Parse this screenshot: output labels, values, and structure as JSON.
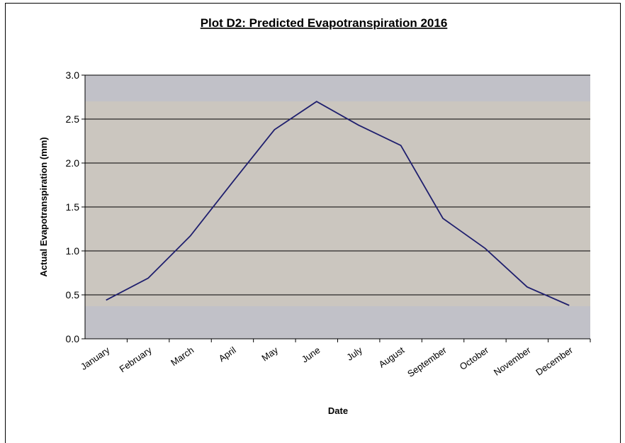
{
  "chart_data": {
    "type": "line",
    "title": "Plot D2: Predicted Evapotranspiration 2016",
    "x_label": "Date",
    "y_label": "Actual Evapotranspiration (mm)",
    "categories": [
      "January",
      "February",
      "March",
      "April",
      "May",
      "June",
      "July",
      "August",
      "September",
      "October",
      "November",
      "December"
    ],
    "values": [
      0.44,
      0.69,
      1.17,
      1.78,
      2.38,
      2.7,
      2.43,
      2.2,
      1.37,
      1.03,
      0.59,
      0.38
    ],
    "color": "#1f1f6e",
    "ylim": [
      0,
      3
    ],
    "yticks": [
      {
        "value": 0,
        "label": "0.0"
      },
      {
        "value": 0.5,
        "label": "0.5"
      },
      {
        "value": 1,
        "label": "1.0"
      },
      {
        "value": 1.5,
        "label": "1.5"
      },
      {
        "value": 2,
        "label": "2.0"
      },
      {
        "value": 2.5,
        "label": "2.5"
      },
      {
        "value": 3,
        "label": "3.0"
      }
    ],
    "grid": true
  }
}
